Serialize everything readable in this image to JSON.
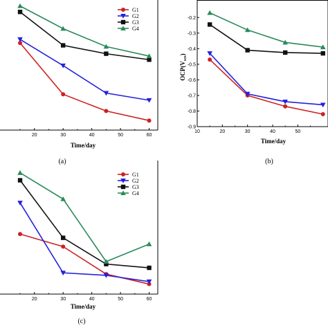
{
  "colors": {
    "G1": "#cc2222",
    "G2": "#2222dd",
    "G3": "#111111",
    "G4": "#2a8a5a"
  },
  "chart_data": [
    {
      "type": "line",
      "panel_label": "(a)",
      "xlabel": "Time/day",
      "ylabel": "",
      "xticks": [
        "20",
        "30",
        "40",
        "50",
        "60"
      ],
      "yticks": [],
      "xlim": [
        8,
        63
      ],
      "ylim": [
        0,
        1
      ],
      "legend": "top-right",
      "x": [
        15,
        30,
        45,
        60
      ],
      "series": [
        {
          "name": "G1",
          "marker": "circle",
          "values": [
            0.73,
            0.3,
            0.16,
            0.08
          ]
        },
        {
          "name": "G2",
          "marker": "triangle-down",
          "values": [
            0.76,
            0.54,
            0.31,
            0.25
          ]
        },
        {
          "name": "G3",
          "marker": "square",
          "values": [
            0.99,
            0.71,
            0.64,
            0.59
          ]
        },
        {
          "name": "G4",
          "marker": "triangle-up",
          "values": [
            1.04,
            0.85,
            0.7,
            0.62
          ]
        }
      ]
    },
    {
      "type": "line",
      "panel_label": "(b)",
      "xlabel": "Time/day",
      "ylabel": "OCP(V",
      "ylabel_sub": "sce",
      "ylabel_end": ")",
      "xticks": [
        "10",
        "20",
        "30",
        "40",
        "50"
      ],
      "yticks": [
        "-0.2",
        "-0.3",
        "-0.4",
        "-0.5",
        "-0.6",
        "-0.7",
        "-0.8",
        "-0.9"
      ],
      "xlim": [
        10,
        62
      ],
      "ylim": [
        -0.9,
        -0.15
      ],
      "x": [
        15,
        30,
        45,
        60
      ],
      "series": [
        {
          "name": "G1",
          "marker": "circle",
          "values": [
            -0.47,
            -0.7,
            -0.77,
            -0.82
          ]
        },
        {
          "name": "G2",
          "marker": "triangle-down",
          "values": [
            -0.43,
            -0.69,
            -0.74,
            -0.76
          ]
        },
        {
          "name": "G3",
          "marker": "square",
          "values": [
            -0.245,
            -0.41,
            -0.425,
            -0.43
          ]
        },
        {
          "name": "G4",
          "marker": "triangle-up",
          "values": [
            -0.17,
            -0.28,
            -0.36,
            -0.39
          ]
        }
      ]
    },
    {
      "type": "line",
      "panel_label": "(c)",
      "xlabel": "Time/day",
      "ylabel": "",
      "xticks": [
        "20",
        "30",
        "40",
        "50",
        "60"
      ],
      "yticks": [],
      "xlim": [
        8,
        63
      ],
      "ylim": [
        0,
        1
      ],
      "legend": "top-right",
      "x": [
        15,
        30,
        45,
        60
      ],
      "series": [
        {
          "name": "G1",
          "marker": "circle",
          "values": [
            0.48,
            0.38,
            0.16,
            0.08
          ]
        },
        {
          "name": "G2",
          "marker": "triangle-down",
          "values": [
            0.73,
            0.17,
            0.15,
            0.1
          ]
        },
        {
          "name": "G3",
          "marker": "square",
          "values": [
            0.91,
            0.45,
            0.24,
            0.21
          ]
        },
        {
          "name": "G4",
          "marker": "triangle-up",
          "values": [
            0.97,
            0.76,
            0.26,
            0.4
          ]
        }
      ]
    }
  ]
}
